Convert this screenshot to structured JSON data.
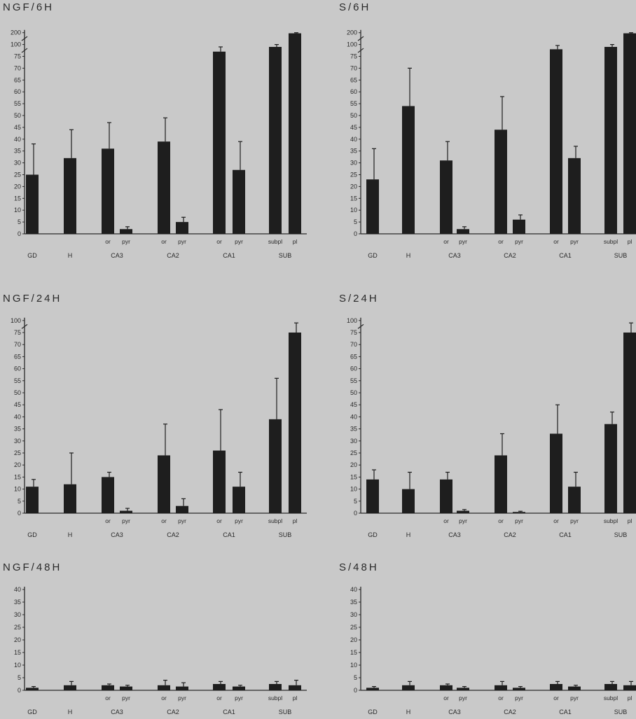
{
  "chart_data": [
    {
      "id": "ngf6h",
      "type": "bar",
      "title": "NGF/6H",
      "axis_break": true,
      "ticks": [
        "0",
        "5",
        "10",
        "15",
        "20",
        "25",
        "30",
        "35",
        "40",
        "45",
        "50",
        "55",
        "60",
        "65",
        "70",
        "75",
        "100",
        "200"
      ],
      "bars": [
        {
          "key": "GD",
          "value": 25,
          "err": 13
        },
        {
          "key": "H",
          "value": 32,
          "err": 12
        },
        {
          "key": "CA3_or",
          "value": 36,
          "err": 11
        },
        {
          "key": "CA3_pyr",
          "value": 2,
          "err": 1
        },
        {
          "key": "CA2_or",
          "value": 39,
          "err": 10
        },
        {
          "key": "CA2_pyr",
          "value": 5,
          "err": 2
        },
        {
          "key": "CA1_or",
          "value": 85,
          "err": 10
        },
        {
          "key": "CA1_pyr",
          "value": 27,
          "err": 12
        },
        {
          "key": "SUB_subpl",
          "value": 95,
          "err": 5
        },
        {
          "key": "SUB_pl",
          "value": 195,
          "err": 10
        }
      ]
    },
    {
      "id": "s6h",
      "type": "bar",
      "title": "S/6H",
      "axis_break": true,
      "ticks": [
        "0",
        "5",
        "10",
        "15",
        "20",
        "25",
        "30",
        "35",
        "40",
        "45",
        "50",
        "55",
        "60",
        "65",
        "70",
        "75",
        "100",
        "200"
      ],
      "bars": [
        {
          "key": "GD",
          "value": 23,
          "err": 13
        },
        {
          "key": "H",
          "value": 54,
          "err": 16
        },
        {
          "key": "CA3_or",
          "value": 31,
          "err": 8
        },
        {
          "key": "CA3_pyr",
          "value": 2,
          "err": 1
        },
        {
          "key": "CA2_or",
          "value": 44,
          "err": 14
        },
        {
          "key": "CA2_pyr",
          "value": 6,
          "err": 2
        },
        {
          "key": "CA1_or",
          "value": 90,
          "err": 8
        },
        {
          "key": "CA1_pyr",
          "value": 32,
          "err": 5
        },
        {
          "key": "SUB_subpl",
          "value": 95,
          "err": 5
        },
        {
          "key": "SUB_pl",
          "value": 195,
          "err": 10
        }
      ]
    },
    {
      "id": "ngf24h",
      "type": "bar",
      "title": "NGF/24H",
      "axis_break": true,
      "ticks": [
        "0",
        "5",
        "10",
        "15",
        "20",
        "25",
        "30",
        "35",
        "40",
        "45",
        "50",
        "55",
        "60",
        "65",
        "70",
        "75",
        "100"
      ],
      "bars": [
        {
          "key": "GD",
          "value": 11,
          "err": 3
        },
        {
          "key": "H",
          "value": 12,
          "err": 13
        },
        {
          "key": "CA3_or",
          "value": 15,
          "err": 2
        },
        {
          "key": "CA3_pyr",
          "value": 1,
          "err": 1
        },
        {
          "key": "CA2_or",
          "value": 24,
          "err": 13
        },
        {
          "key": "CA2_pyr",
          "value": 3,
          "err": 3
        },
        {
          "key": "CA1_or",
          "value": 26,
          "err": 17
        },
        {
          "key": "CA1_pyr",
          "value": 11,
          "err": 6
        },
        {
          "key": "SUB_subpl",
          "value": 39,
          "err": 17
        },
        {
          "key": "SUB_pl",
          "value": 75,
          "err": 20
        }
      ]
    },
    {
      "id": "s24h",
      "type": "bar",
      "title": "S/24H",
      "axis_break": true,
      "ticks": [
        "0",
        "5",
        "10",
        "15",
        "20",
        "25",
        "30",
        "35",
        "40",
        "45",
        "50",
        "55",
        "60",
        "65",
        "70",
        "75",
        "100"
      ],
      "bars": [
        {
          "key": "GD",
          "value": 14,
          "err": 4
        },
        {
          "key": "H",
          "value": 10,
          "err": 7
        },
        {
          "key": "CA3_or",
          "value": 14,
          "err": 3
        },
        {
          "key": "CA3_pyr",
          "value": 1,
          "err": 0.5
        },
        {
          "key": "CA2_or",
          "value": 24,
          "err": 9
        },
        {
          "key": "CA2_pyr",
          "value": 0.5,
          "err": 0.3
        },
        {
          "key": "CA1_or",
          "value": 33,
          "err": 12
        },
        {
          "key": "CA1_pyr",
          "value": 11,
          "err": 6
        },
        {
          "key": "SUB_subpl",
          "value": 37,
          "err": 5
        },
        {
          "key": "SUB_pl",
          "value": 75,
          "err": 20
        }
      ]
    },
    {
      "id": "ngf48h",
      "type": "bar",
      "title": "NGF/48H",
      "axis_break": false,
      "ticks": [
        "0",
        "5",
        "10",
        "15",
        "20",
        "25",
        "30",
        "35",
        "40"
      ],
      "bars": [
        {
          "key": "GD",
          "value": 1,
          "err": 0.5
        },
        {
          "key": "H",
          "value": 2,
          "err": 1.5
        },
        {
          "key": "CA3_or",
          "value": 2,
          "err": 0.5
        },
        {
          "key": "CA3_pyr",
          "value": 1.5,
          "err": 0.5
        },
        {
          "key": "CA2_or",
          "value": 2,
          "err": 2
        },
        {
          "key": "CA2_pyr",
          "value": 1.5,
          "err": 1.5
        },
        {
          "key": "CA1_or",
          "value": 2.5,
          "err": 1
        },
        {
          "key": "CA1_pyr",
          "value": 1.5,
          "err": 0.5
        },
        {
          "key": "SUB_subpl",
          "value": 2.5,
          "err": 1
        },
        {
          "key": "SUB_pl",
          "value": 2,
          "err": 2
        }
      ]
    },
    {
      "id": "s48h",
      "type": "bar",
      "title": "S/48H",
      "axis_break": false,
      "ticks": [
        "0",
        "5",
        "10",
        "15",
        "20",
        "25",
        "30",
        "35",
        "40"
      ],
      "bars": [
        {
          "key": "GD",
          "value": 1,
          "err": 0.5
        },
        {
          "key": "H",
          "value": 2,
          "err": 1.5
        },
        {
          "key": "CA3_or",
          "value": 2,
          "err": 0.5
        },
        {
          "key": "CA3_pyr",
          "value": 1,
          "err": 0.5
        },
        {
          "key": "CA2_or",
          "value": 2,
          "err": 1.5
        },
        {
          "key": "CA2_pyr",
          "value": 1,
          "err": 0.5
        },
        {
          "key": "CA1_or",
          "value": 2.5,
          "err": 1
        },
        {
          "key": "CA1_pyr",
          "value": 1.5,
          "err": 0.5
        },
        {
          "key": "SUB_subpl",
          "value": 2.5,
          "err": 1
        },
        {
          "key": "SUB_pl",
          "value": 2,
          "err": 1.5
        }
      ]
    }
  ],
  "x_labels": {
    "groups": [
      "GD",
      "H",
      "CA3",
      "CA2",
      "CA1",
      "SUB"
    ],
    "sublabels": {
      "or": "or",
      "pyr": "pyr",
      "subpl": "subpl",
      "pl": "pl"
    }
  },
  "colors": {
    "bar": "#1e1e1e",
    "axis": "#2a2a2a",
    "background": "#c9c9c9"
  }
}
